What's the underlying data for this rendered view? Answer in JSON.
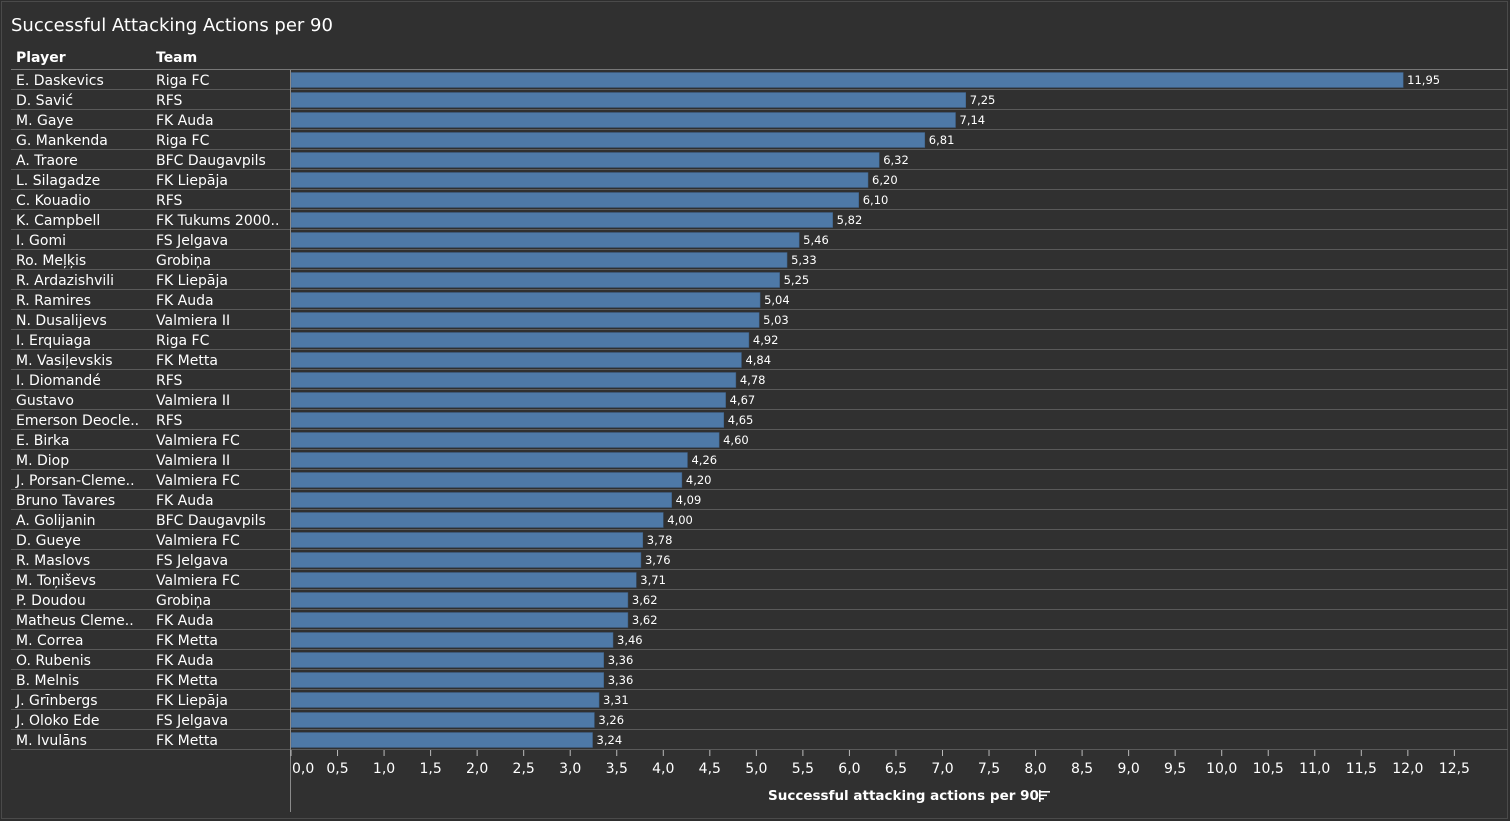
{
  "title": "Successful Attacking Actions per 90",
  "headers": {
    "player": "Player",
    "team": "Team"
  },
  "sort_icon": "sort-descending-icon",
  "chart_data": {
    "type": "bar",
    "orientation": "horizontal",
    "title": "Successful Attacking Actions per 90",
    "xlabel": "Successful attacking actions per 90",
    "xlim": [
      0,
      13
    ],
    "xticks": [
      "0,0",
      "0,5",
      "1,0",
      "1,5",
      "2,0",
      "2,5",
      "3,0",
      "3,5",
      "4,0",
      "4,5",
      "5,0",
      "5,5",
      "6,0",
      "6,5",
      "7,0",
      "7,5",
      "8,0",
      "8,5",
      "9,0",
      "9,5",
      "10,0",
      "10,5",
      "11,0",
      "11,5",
      "12,0",
      "12,5"
    ],
    "grid": true,
    "bar_color": "#4e79a7",
    "rows": [
      {
        "player": "E. Daskevics",
        "team": "Riga FC",
        "value": 11.95,
        "label": "11,95"
      },
      {
        "player": "D. Savić",
        "team": "RFS",
        "value": 7.25,
        "label": "7,25"
      },
      {
        "player": "M. Gaye",
        "team": "FK Auda",
        "value": 7.14,
        "label": "7,14"
      },
      {
        "player": "G. Mankenda",
        "team": "Riga FC",
        "value": 6.81,
        "label": "6,81"
      },
      {
        "player": "A. Traore",
        "team": "BFC Daugavpils",
        "value": 6.32,
        "label": "6,32"
      },
      {
        "player": "L. Silagadze",
        "team": "FK Liepāja",
        "value": 6.2,
        "label": "6,20"
      },
      {
        "player": "C. Kouadio",
        "team": "RFS",
        "value": 6.1,
        "label": "6,10"
      },
      {
        "player": "K. Campbell",
        "team": "FK Tukums 2000..",
        "value": 5.82,
        "label": "5,82"
      },
      {
        "player": "I. Gomi",
        "team": "FS Jelgava",
        "value": 5.46,
        "label": "5,46"
      },
      {
        "player": "Ro. Meļķis",
        "team": "Grobiņa",
        "value": 5.33,
        "label": "5,33"
      },
      {
        "player": "R. Ardazishvili",
        "team": "FK Liepāja",
        "value": 5.25,
        "label": "5,25"
      },
      {
        "player": "R. Ramires",
        "team": "FK Auda",
        "value": 5.04,
        "label": "5,04"
      },
      {
        "player": "N. Dusalijevs",
        "team": "Valmiera II",
        "value": 5.03,
        "label": "5,03"
      },
      {
        "player": "I. Erquiaga",
        "team": "Riga FC",
        "value": 4.92,
        "label": "4,92"
      },
      {
        "player": "M. Vasiļevskis",
        "team": "FK Metta",
        "value": 4.84,
        "label": "4,84"
      },
      {
        "player": "I. Diomandé",
        "team": "RFS",
        "value": 4.78,
        "label": "4,78"
      },
      {
        "player": "Gustavo",
        "team": "Valmiera II",
        "value": 4.67,
        "label": "4,67"
      },
      {
        "player": "Emerson Deocle..",
        "team": "RFS",
        "value": 4.65,
        "label": "4,65"
      },
      {
        "player": "E. Birka",
        "team": "Valmiera FC",
        "value": 4.6,
        "label": "4,60"
      },
      {
        "player": "M. Diop",
        "team": "Valmiera II",
        "value": 4.26,
        "label": "4,26"
      },
      {
        "player": "J. Porsan-Cleme..",
        "team": "Valmiera FC",
        "value": 4.2,
        "label": "4,20"
      },
      {
        "player": "Bruno Tavares",
        "team": "FK Auda",
        "value": 4.09,
        "label": "4,09"
      },
      {
        "player": "A. Golijanin",
        "team": "BFC Daugavpils",
        "value": 4.0,
        "label": "4,00"
      },
      {
        "player": "D. Gueye",
        "team": "Valmiera FC",
        "value": 3.78,
        "label": "3,78"
      },
      {
        "player": "R. Maslovs",
        "team": "FS Jelgava",
        "value": 3.76,
        "label": "3,76"
      },
      {
        "player": "M. Toņiševs",
        "team": "Valmiera FC",
        "value": 3.71,
        "label": "3,71"
      },
      {
        "player": "P. Doudou",
        "team": "Grobiņa",
        "value": 3.62,
        "label": "3,62"
      },
      {
        "player": "Matheus Cleme..",
        "team": "FK Auda",
        "value": 3.62,
        "label": "3,62"
      },
      {
        "player": "M. Correa",
        "team": "FK Metta",
        "value": 3.46,
        "label": "3,46"
      },
      {
        "player": "O. Rubenis",
        "team": "FK Auda",
        "value": 3.36,
        "label": "3,36"
      },
      {
        "player": "B. Melnis",
        "team": "FK Metta",
        "value": 3.36,
        "label": "3,36"
      },
      {
        "player": "J. Grīnbergs",
        "team": "FK Liepāja",
        "value": 3.31,
        "label": "3,31"
      },
      {
        "player": "J. Oloko Ede",
        "team": "FS Jelgava",
        "value": 3.26,
        "label": "3,26"
      },
      {
        "player": "M. Ivulāns",
        "team": "FK Metta",
        "value": 3.24,
        "label": "3,24"
      }
    ]
  }
}
